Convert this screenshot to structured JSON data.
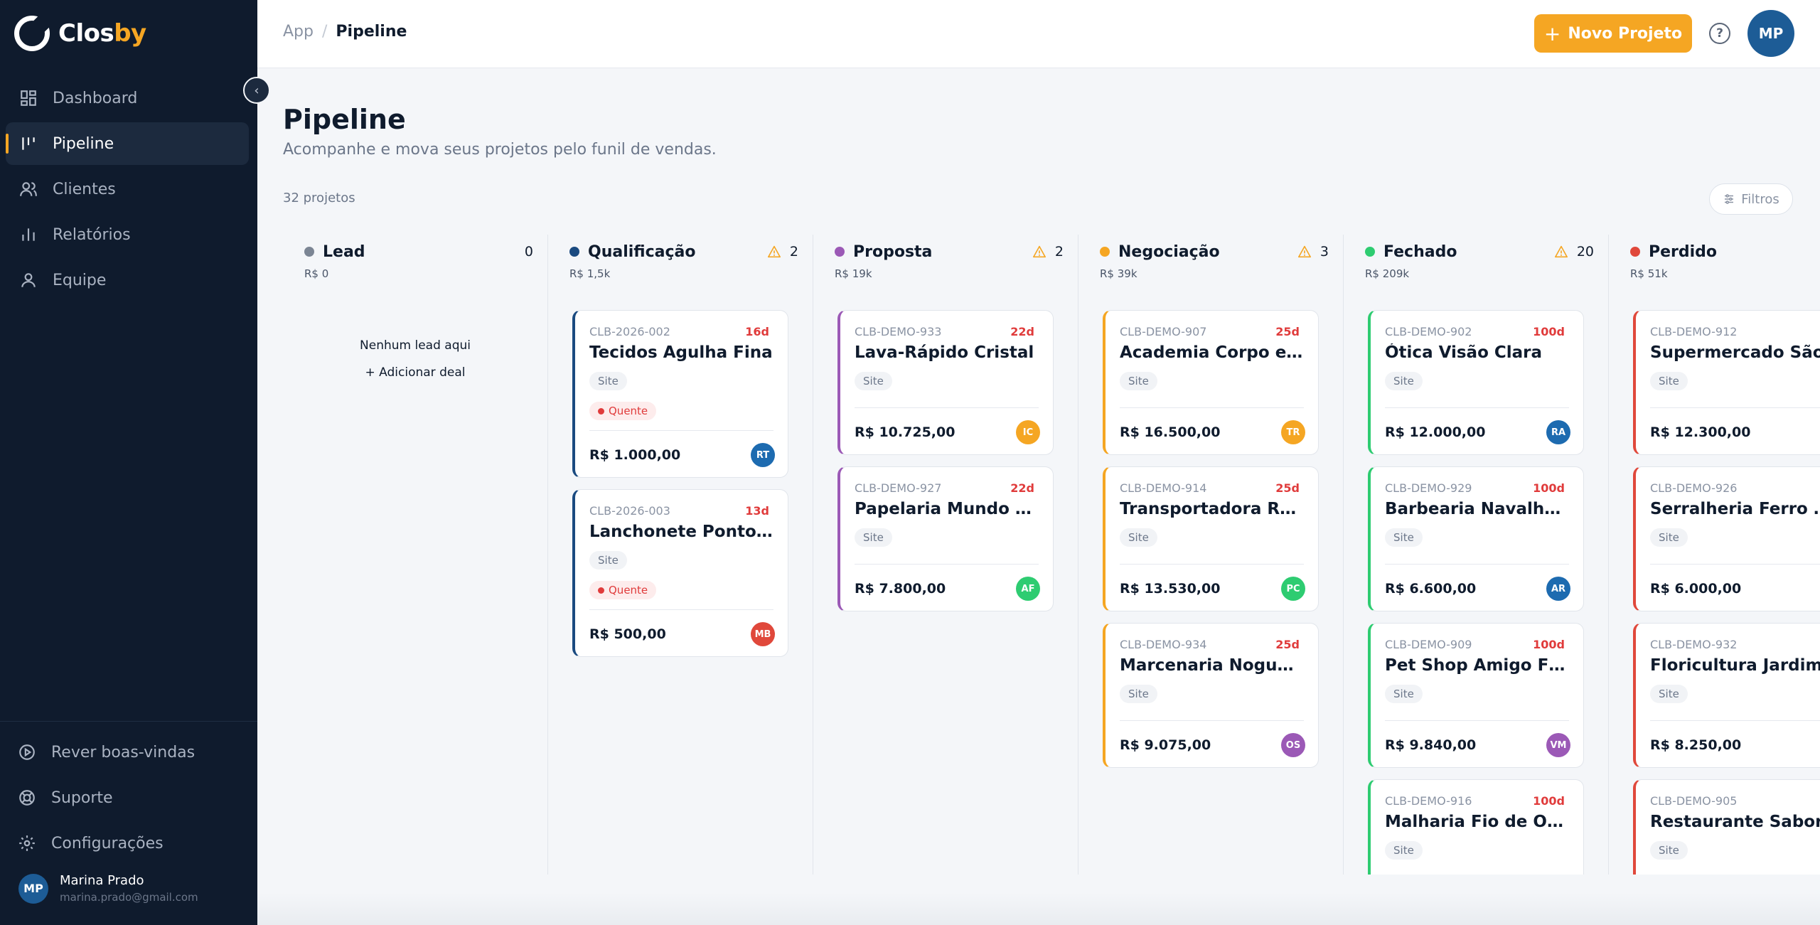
{
  "app": {
    "name_part1": "Clos",
    "name_part2": "by",
    "accent": "#f5a623"
  },
  "sidebar": {
    "items": [
      {
        "label": "Dashboard",
        "icon": "dashboard-icon"
      },
      {
        "label": "Pipeline",
        "icon": "pipeline-icon",
        "active": true
      },
      {
        "label": "Clientes",
        "icon": "users-icon"
      },
      {
        "label": "Relatórios",
        "icon": "chart-icon"
      },
      {
        "label": "Equipe",
        "icon": "user-icon"
      }
    ],
    "bottom": [
      {
        "label": "Rever boas-vindas",
        "icon": "play-circle-icon"
      },
      {
        "label": "Suporte",
        "icon": "lifebuoy-icon"
      },
      {
        "label": "Configurações",
        "icon": "gear-icon"
      }
    ],
    "user": {
      "initials": "MP",
      "name": "Marina Prado",
      "email": "marina.prado@gmail.com"
    }
  },
  "header": {
    "breadcrumb_root": "App",
    "breadcrumb_sep": "/",
    "breadcrumb_current": "Pipeline",
    "new_project": "Novo Projeto",
    "help": "?",
    "avatar_initials": "MP"
  },
  "page": {
    "title": "Pipeline",
    "subtitle": "Acompanhe e mova seus projetos pelo funil de vendas.",
    "count": "32 projetos",
    "filters": "Filtros"
  },
  "columns": [
    {
      "title": "Lead",
      "count": "0",
      "total": "R$ 0",
      "color": "#7b8594",
      "warn": false,
      "empty": "Nenhum lead aqui",
      "add": "+ Adicionar deal",
      "cards": []
    },
    {
      "title": "Qualificação",
      "count": "2",
      "total": "R$ 1,5k",
      "color": "#1a4a80",
      "warn": true,
      "cards": [
        {
          "code": "CLB-2026-002",
          "days": "16d",
          "name": "Tecidos Agulha Fina",
          "tag": "Site",
          "hot": "Quente",
          "value": "R$ 1.000,00",
          "initials": "RT",
          "avatar": "#1d6bb0"
        },
        {
          "code": "CLB-2026-003",
          "days": "13d",
          "name": "Lanchonete Ponto do ...",
          "tag": "Site",
          "hot": "Quente",
          "value": "R$ 500,00",
          "initials": "MB",
          "avatar": "#e0483b"
        }
      ]
    },
    {
      "title": "Proposta",
      "count": "2",
      "total": "R$ 19k",
      "color": "#9b59b6",
      "warn": true,
      "cards": [
        {
          "code": "CLB-DEMO-933",
          "days": "22d",
          "name": "Lava-Rápido Cristal",
          "tag": "Site",
          "value": "R$ 10.725,00",
          "initials": "IC",
          "avatar": "#f5a623"
        },
        {
          "code": "CLB-DEMO-927",
          "days": "22d",
          "name": "Papelaria Mundo das ...",
          "tag": "Site",
          "value": "R$ 7.800,00",
          "initials": "AF",
          "avatar": "#2ecc71"
        }
      ]
    },
    {
      "title": "Negociação",
      "count": "3",
      "total": "R$ 39k",
      "color": "#f5a623",
      "warn": true,
      "cards": [
        {
          "code": "CLB-DEMO-907",
          "days": "25d",
          "name": "Academia Corpo em ...",
          "tag": "Site",
          "value": "R$ 16.500,00",
          "initials": "TR",
          "avatar": "#f5a623"
        },
        {
          "code": "CLB-DEMO-914",
          "days": "25d",
          "name": "Transportadora Rota ...",
          "tag": "Site",
          "value": "R$ 13.530,00",
          "initials": "PC",
          "avatar": "#2ecc71"
        },
        {
          "code": "CLB-DEMO-934",
          "days": "25d",
          "name": "Marcenaria Nogueira",
          "tag": "Site",
          "value": "R$ 9.075,00",
          "initials": "OS",
          "avatar": "#9b59b6"
        }
      ]
    },
    {
      "title": "Fechado",
      "count": "20",
      "total": "R$ 209k",
      "color": "#2ecc71",
      "warn": true,
      "cards": [
        {
          "code": "CLB-DEMO-902",
          "days": "100d",
          "name": "Ótica Visão Clara",
          "tag": "Site",
          "value": "R$ 12.000,00",
          "initials": "RA",
          "avatar": "#1d6bb0"
        },
        {
          "code": "CLB-DEMO-929",
          "days": "100d",
          "name": "Barbearia Navalha de ...",
          "tag": "Site",
          "value": "R$ 6.600,00",
          "initials": "AR",
          "avatar": "#1d6bb0"
        },
        {
          "code": "CLB-DEMO-909",
          "days": "100d",
          "name": "Pet Shop Amigo Fiel",
          "tag": "Site",
          "value": "R$ 9.840,00",
          "initials": "VM",
          "avatar": "#9b59b6"
        },
        {
          "code": "CLB-DEMO-916",
          "days": "100d",
          "name": "Malharia Fio de Ouro",
          "tag": "Site",
          "value": "",
          "initials": "",
          "avatar": "#e0483b"
        }
      ]
    },
    {
      "title": "Perdido",
      "count": "",
      "total": "R$ 51k",
      "color": "#e0483b",
      "warn": false,
      "cards": [
        {
          "code": "CLB-DEMO-912",
          "days": "",
          "name": "Supermercado São",
          "tag": "Site",
          "value": "R$ 12.300,00",
          "initials": "",
          "avatar": ""
        },
        {
          "code": "CLB-DEMO-926",
          "days": "",
          "name": "Serralheria Ferro Fo",
          "tag": "Site",
          "value": "R$ 6.000,00",
          "initials": "",
          "avatar": ""
        },
        {
          "code": "CLB-DEMO-932",
          "days": "",
          "name": "Floricultura Jardim",
          "tag": "Site",
          "value": "R$ 8.250,00",
          "initials": "",
          "avatar": ""
        },
        {
          "code": "CLB-DEMO-905",
          "days": "",
          "name": "Restaurante Sabor",
          "tag": "Site",
          "value": "",
          "initials": "",
          "avatar": ""
        }
      ]
    }
  ]
}
